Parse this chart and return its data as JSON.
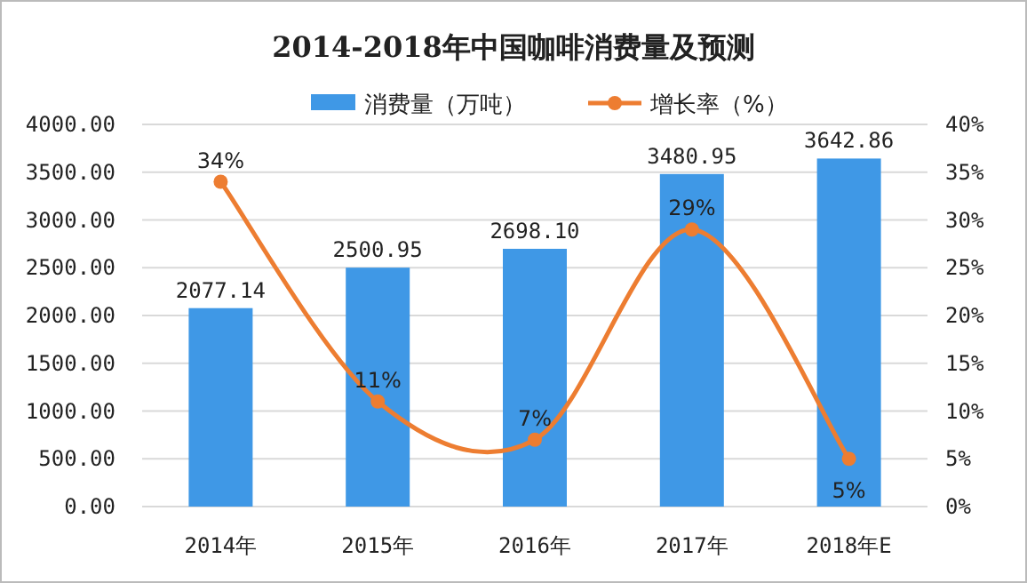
{
  "chart_data": {
    "type": "bar",
    "title": "2014-2018年中国咖啡消费量及预测",
    "categories": [
      "2014年",
      "2015年",
      "2016年",
      "2017年",
      "2018年E"
    ],
    "series": [
      {
        "name": "消费量（万吨）",
        "color": "#3f98e6",
        "values": [
          2077.14,
          2500.95,
          2698.1,
          3480.95,
          3642.86
        ],
        "value_labels": [
          "2077.14",
          "2500.95",
          "2698.10",
          "3480.95",
          "3642.86"
        ]
      },
      {
        "name": "增长率（%）",
        "type": "line",
        "axis": "y2",
        "color": "#ed7d31",
        "marker": "circle",
        "values": [
          34,
          11,
          7,
          29,
          5
        ],
        "value_labels": [
          "34%",
          "11%",
          "7%",
          "29%",
          "5%"
        ]
      }
    ],
    "ylim": [
      0,
      4000
    ],
    "yticks": [
      {
        "value": 0,
        "label": "0.00"
      },
      {
        "value": 500,
        "label": "500.00"
      },
      {
        "value": 1000,
        "label": "1000.00"
      },
      {
        "value": 1500,
        "label": "1500.00"
      },
      {
        "value": 2000,
        "label": "2000.00"
      },
      {
        "value": 2500,
        "label": "2500.00"
      },
      {
        "value": 3000,
        "label": "3000.00"
      },
      {
        "value": 3500,
        "label": "3500.00"
      },
      {
        "value": 4000,
        "label": "4000.00"
      }
    ],
    "y2lim": [
      0,
      40
    ],
    "y2ticks": [
      {
        "value": 0,
        "label": "0%"
      },
      {
        "value": 5,
        "label": "5%"
      },
      {
        "value": 10,
        "label": "10%"
      },
      {
        "value": 15,
        "label": "15%"
      },
      {
        "value": 20,
        "label": "20%"
      },
      {
        "value": 25,
        "label": "25%"
      },
      {
        "value": 30,
        "label": "30%"
      },
      {
        "value": 35,
        "label": "35%"
      },
      {
        "value": 40,
        "label": "40%"
      }
    ],
    "grid": "y",
    "legend": "top"
  }
}
